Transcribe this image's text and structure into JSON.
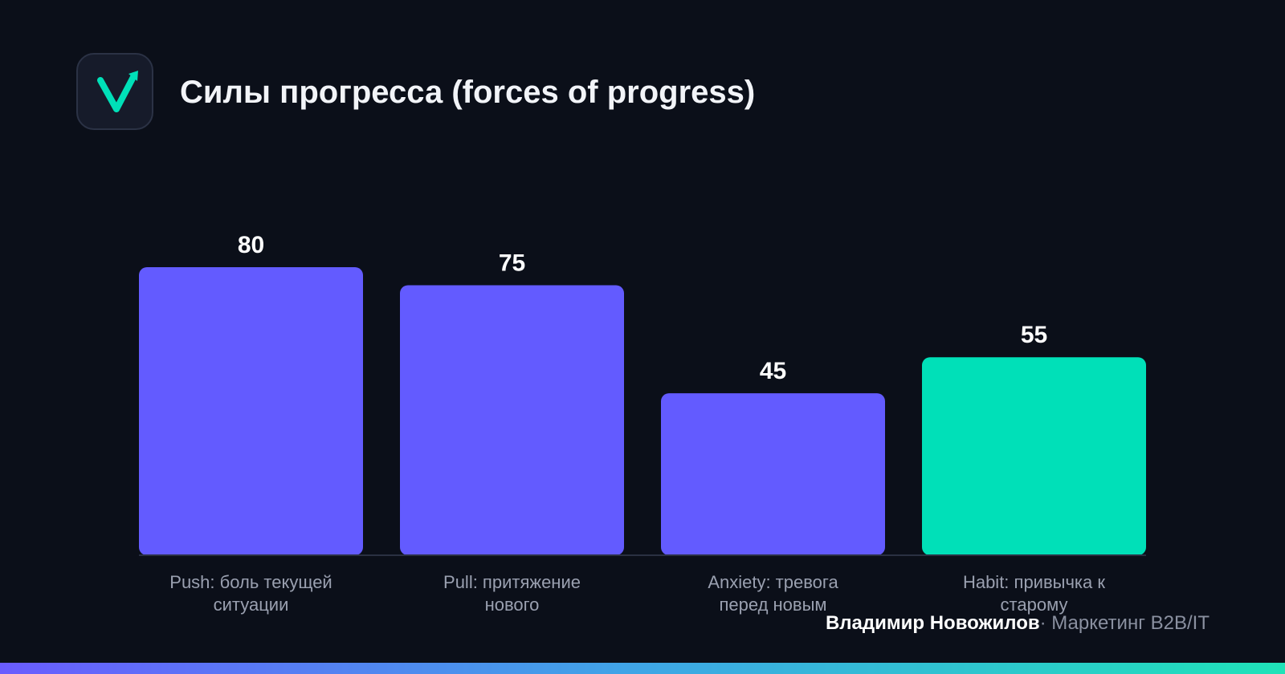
{
  "header": {
    "logo_icon": "checkmark-arrow-icon",
    "title": "Силы прогресса (forces of progress)"
  },
  "chart_data": {
    "type": "bar",
    "title": "Силы прогресса (forces of progress)",
    "categories": [
      "Push: боль текущей ситуации",
      "Pull: притяжение нового",
      "Anxiety: тревога перед новым",
      "Habit: привычка к старому"
    ],
    "category_lines": [
      [
        "Push: боль текущей",
        "ситуации"
      ],
      [
        "Pull: притяжение",
        "нового"
      ],
      [
        "Anxiety: тревога",
        "перед новым"
      ],
      [
        "Habit: привычка к",
        "старому"
      ]
    ],
    "values": [
      80,
      75,
      45,
      55
    ],
    "value_labels": [
      "80",
      "75",
      "45",
      "55"
    ],
    "colors": [
      "#635bff",
      "#635bff",
      "#635bff",
      "#00e0b8"
    ],
    "ylim": [
      0,
      80
    ],
    "grid": false,
    "legend": "none"
  },
  "footer": {
    "author": "Владимир Новожилов",
    "separator": "·",
    "role": "Маркетинг B2B/IT"
  },
  "colors": {
    "background": "#0b0f19",
    "accent": "#00e0b8",
    "bar": "#635bff",
    "label": "#9aa0b0"
  }
}
